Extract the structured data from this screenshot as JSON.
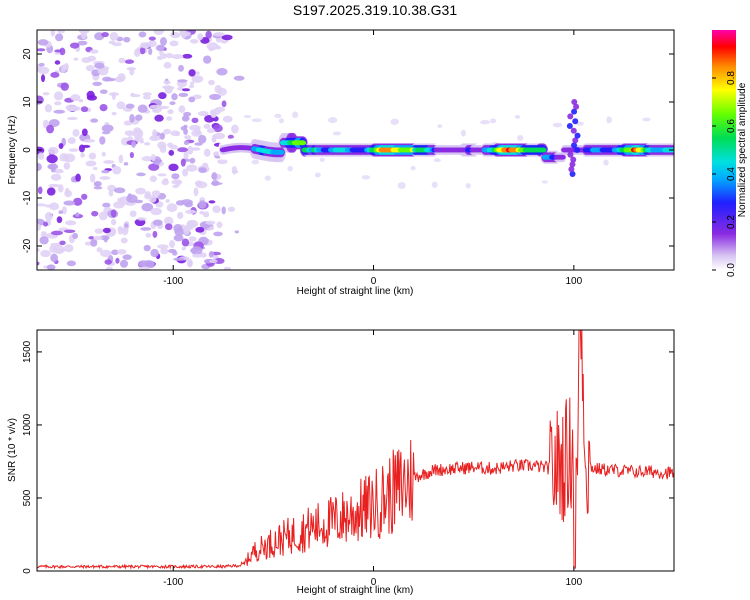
{
  "title": "S197.2025.319.10.38.G31",
  "chart_data": [
    {
      "type": "heatmap",
      "xlabel": "Height of straight line (km)",
      "ylabel": "Frequency (Hz)",
      "xlim": [
        -168,
        150
      ],
      "ylim": [
        -25,
        25
      ],
      "xticks": [
        -100,
        0,
        100
      ],
      "yticks": [
        -20,
        -10,
        0,
        10,
        20
      ],
      "colorbar": {
        "label": "Normalized spectral amplitude",
        "ticks": [
          "0.0",
          "0.2",
          "0.4",
          "0.6",
          "0.8"
        ],
        "tick_values": [
          0.0,
          0.2,
          0.4,
          0.6,
          0.8
        ],
        "range": [
          0,
          1
        ]
      },
      "features": [
        {
          "region": "noise",
          "x_range": [
            -168,
            -75
          ],
          "amplitude": 0.15
        },
        {
          "region": "signal_ridge",
          "x_range": [
            -75,
            150
          ],
          "frequency": 0,
          "amplitude_peak": 1.0
        }
      ]
    },
    {
      "type": "line",
      "xlabel": "Height of straight line (km)",
      "ylabel": "SNR (10 * v/v)",
      "xlim": [
        -168,
        150
      ],
      "ylim": [
        0,
        1650
      ],
      "xticks": [
        -100,
        0,
        100
      ],
      "yticks": [
        0,
        500,
        1000,
        1500
      ],
      "series": [
        {
          "name": "SNR",
          "color": "#e82020",
          "x": [
            -168,
            -150,
            -130,
            -110,
            -90,
            -75,
            -65,
            -60,
            -50,
            -40,
            -30,
            -20,
            -10,
            0,
            10,
            20,
            30,
            40,
            50,
            60,
            70,
            80,
            90,
            95,
            100,
            102,
            104,
            106,
            110,
            120,
            130,
            140,
            150
          ],
          "y": [
            30,
            30,
            30,
            30,
            30,
            30,
            40,
            130,
            200,
            250,
            300,
            340,
            390,
            450,
            540,
            640,
            690,
            700,
            710,
            700,
            720,
            720,
            700,
            750,
            850,
            650,
            1600,
            750,
            700,
            690,
            680,
            680,
            670
          ]
        }
      ]
    }
  ]
}
